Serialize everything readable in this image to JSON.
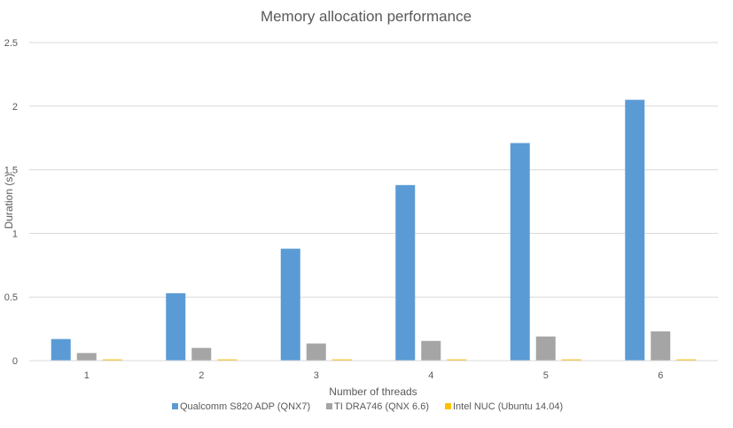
{
  "chart_data": {
    "type": "bar",
    "title": "Memory allocation performance",
    "xlabel": "Number of threads",
    "ylabel": "Duration (s)",
    "categories": [
      "1",
      "2",
      "3",
      "4",
      "5",
      "6"
    ],
    "ylim": [
      0,
      2.5
    ],
    "yticks": [
      "0",
      "0.5",
      "1",
      "1.5",
      "2",
      "2.5"
    ],
    "grid": true,
    "legend_position": "bottom",
    "series": [
      {
        "name": "Qualcomm S820 ADP (QNX7)",
        "color": "#5b9bd5",
        "values": [
          0.17,
          0.53,
          0.88,
          1.38,
          1.71,
          2.05
        ]
      },
      {
        "name": "TI DRA746 (QNX 6.6)",
        "color": "#a5a5a5",
        "values": [
          0.06,
          0.1,
          0.135,
          0.155,
          0.19,
          0.23
        ]
      },
      {
        "name": "Intel NUC (Ubuntu 14.04)",
        "color": "#ffc000",
        "values": [
          0.01,
          0.01,
          0.01,
          0.01,
          0.01,
          0.01
        ]
      }
    ]
  }
}
